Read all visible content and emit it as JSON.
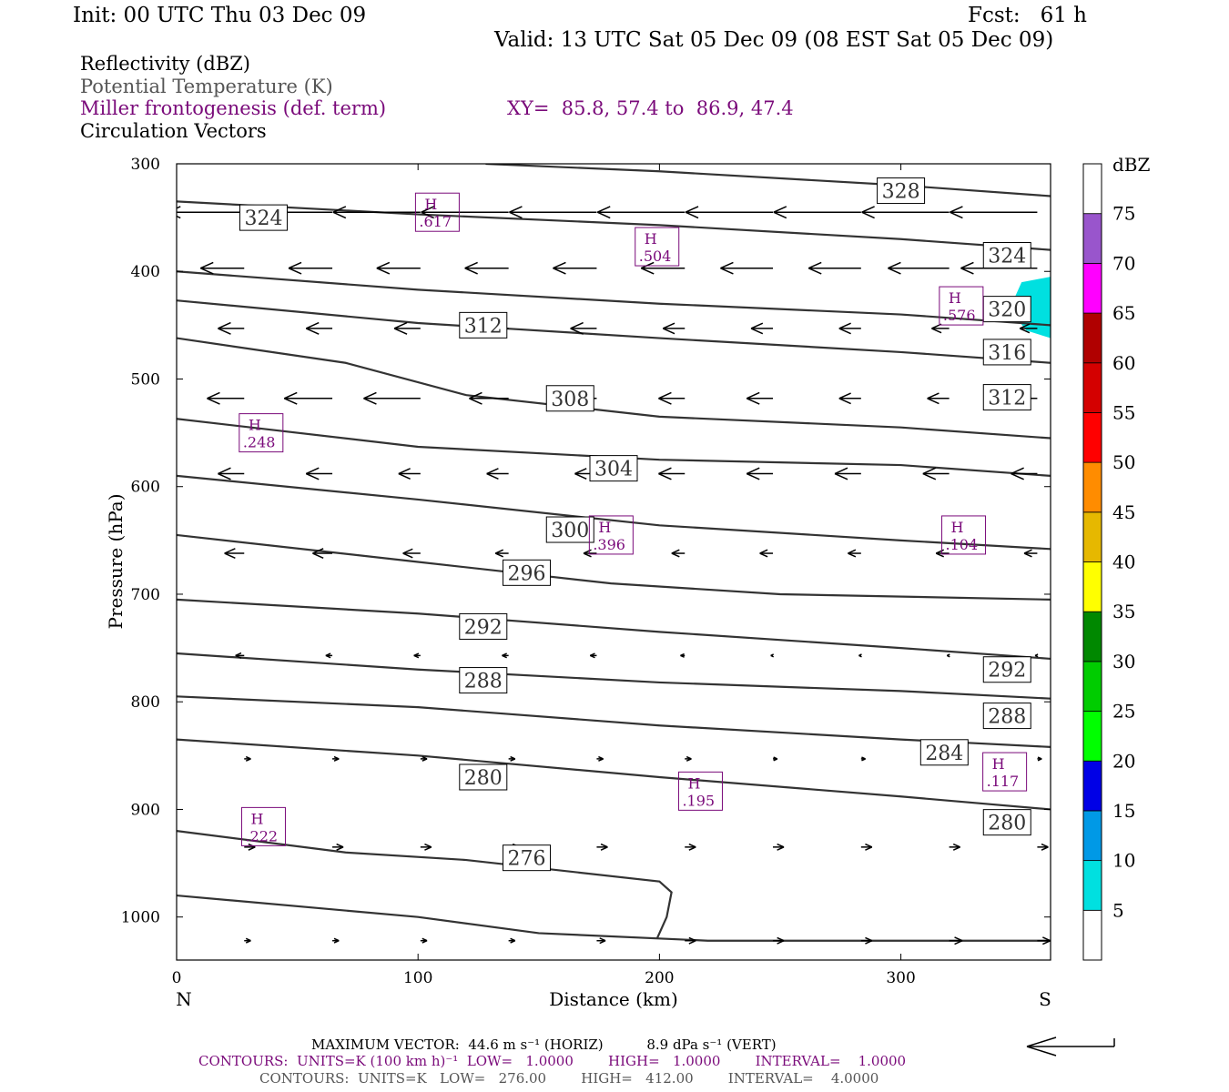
{
  "header": {
    "init": "Init: 00 UTC Thu 03 Dec 09",
    "fcst": "Fcst:   61 h",
    "valid": "Valid: 13 UTC Sat 05 Dec 09 (08 EST Sat 05 Dec 09)"
  },
  "legend": {
    "reflectivity": "Reflectivity (dBZ)",
    "theta": "Potential Temperature (K)",
    "miller": "Miller frontogenesis (def. term)",
    "xy": "XY=  85.8, 57.4 to  86.9, 47.4",
    "vectors": "Circulation Vectors"
  },
  "footer": {
    "max_vector": "MAXIMUM VECTOR:  44.6 m s⁻¹ (HORIZ)          8.9 dPa s⁻¹ (VERT)",
    "contours_front": "CONTOURS:  UNITS=K (100 km h)⁻¹  LOW=   1.0000        HIGH=   1.0000        INTERVAL=    1.0000",
    "contours_theta": "CONTOURS:  UNITS=K   LOW=   276.00        HIGH=   412.00        INTERVAL=    4.0000"
  },
  "colors": {
    "purple": "#7a0a7a",
    "theta_line": "#333333",
    "cyan": "#00e0e0"
  },
  "chart_data": {
    "type": "cross-section",
    "xlabel": "Distance (km)",
    "ylabel": "Pressure (hPa)",
    "xlim": [
      0,
      362
    ],
    "ylim": [
      300,
      1040
    ],
    "x_ticks": [
      0,
      100,
      200,
      300
    ],
    "y_ticks": [
      300,
      400,
      500,
      600,
      700,
      800,
      900,
      1000
    ],
    "x_end_labels": {
      "left": "N",
      "right": "S"
    },
    "colorbar": {
      "title": "dBZ",
      "levels": [
        5,
        10,
        15,
        20,
        25,
        30,
        35,
        40,
        45,
        50,
        55,
        60,
        65,
        70,
        75
      ],
      "colors": [
        "#ffffff",
        "#00e0e0",
        "#0099e6",
        "#0000e6",
        "#00ff00",
        "#00cc00",
        "#008800",
        "#ffff00",
        "#e6b800",
        "#ff8c00",
        "#ff0000",
        "#d40000",
        "#b00000",
        "#ff00ff",
        "#9955cc",
        "#ffffff"
      ]
    },
    "theta_contours": [
      {
        "value": 328,
        "points": [
          [
            128,
            300
          ],
          [
            200,
            307
          ],
          [
            300,
            320
          ],
          [
            362,
            330
          ]
        ],
        "labels": [
          [
            300,
            325
          ]
        ]
      },
      {
        "value": 324,
        "points": [
          [
            0,
            335
          ],
          [
            100,
            347
          ],
          [
            200,
            357
          ],
          [
            300,
            370
          ],
          [
            362,
            380
          ]
        ],
        "labels": [
          [
            36,
            350
          ],
          [
            344,
            385
          ]
        ]
      },
      {
        "value": 320,
        "points": [
          [
            0,
            400
          ],
          [
            100,
            417
          ],
          [
            200,
            430
          ],
          [
            300,
            440
          ],
          [
            362,
            450
          ]
        ],
        "labels": [
          [
            344,
            435
          ]
        ]
      },
      {
        "value": 316,
        "points": [
          [
            0,
            427
          ],
          [
            100,
            448
          ],
          [
            200,
            462
          ],
          [
            300,
            475
          ],
          [
            362,
            485
          ]
        ],
        "labels": [
          [
            344,
            475
          ]
        ]
      },
      {
        "value": 312,
        "points": [
          [
            0,
            462
          ],
          [
            70,
            485
          ],
          [
            120,
            515
          ],
          [
            200,
            535
          ],
          [
            300,
            545
          ],
          [
            362,
            555
          ]
        ],
        "labels": [
          [
            127,
            450
          ],
          [
            344,
            517
          ]
        ]
      },
      {
        "value": 308,
        "points": [
          [
            0,
            537
          ],
          [
            100,
            563
          ],
          [
            200,
            575
          ],
          [
            300,
            580
          ],
          [
            362,
            590
          ]
        ],
        "labels": [
          [
            163,
            518
          ]
        ]
      },
      {
        "value": 304,
        "points": [
          [
            0,
            590
          ],
          [
            100,
            612
          ],
          [
            200,
            636
          ],
          [
            300,
            650
          ],
          [
            362,
            658
          ]
        ],
        "labels": [
          [
            181,
            583
          ]
        ]
      },
      {
        "value": 300,
        "points": [
          [
            0,
            645
          ],
          [
            100,
            670
          ],
          [
            180,
            690
          ],
          [
            250,
            700
          ],
          [
            362,
            705
          ]
        ],
        "labels": [
          [
            163,
            640
          ]
        ]
      },
      {
        "value": 296,
        "points": [
          [
            0,
            705
          ],
          [
            100,
            718
          ],
          [
            200,
            735
          ],
          [
            300,
            750
          ],
          [
            362,
            760
          ]
        ],
        "labels": [
          [
            145,
            680
          ]
        ]
      },
      {
        "value": 292,
        "points": [
          [
            0,
            755
          ],
          [
            100,
            770
          ],
          [
            200,
            782
          ],
          [
            300,
            790
          ],
          [
            362,
            797
          ]
        ],
        "labels": [
          [
            127,
            730
          ],
          [
            344,
            770
          ]
        ]
      },
      {
        "value": 288,
        "points": [
          [
            0,
            795
          ],
          [
            100,
            805
          ],
          [
            200,
            822
          ],
          [
            300,
            835
          ],
          [
            362,
            842
          ]
        ],
        "labels": [
          [
            127,
            780
          ],
          [
            344,
            813
          ]
        ]
      },
      {
        "value": 284,
        "points": [
          [
            0,
            835
          ],
          [
            100,
            850
          ],
          [
            200,
            870
          ],
          [
            300,
            888
          ],
          [
            362,
            900
          ]
        ],
        "labels": [
          [
            318,
            847
          ]
        ]
      },
      {
        "value": 280,
        "points": [
          [
            0,
            920
          ],
          [
            70,
            940
          ],
          [
            120,
            947
          ],
          [
            200,
            967
          ],
          [
            205,
            977
          ],
          [
            203,
            1000
          ],
          [
            199,
            1020
          ]
        ],
        "labels": [
          [
            127,
            870
          ],
          [
            344,
            912
          ]
        ]
      },
      {
        "value": 276,
        "points": [
          [
            0,
            980
          ],
          [
            100,
            1000
          ],
          [
            150,
            1015
          ],
          [
            220,
            1022
          ],
          [
            362,
            1022
          ]
        ],
        "labels": [
          [
            145,
            945
          ]
        ]
      }
    ],
    "frontogenesis_maxima": [
      {
        "label": "H",
        "value": ".617",
        "x": 108,
        "p": 345
      },
      {
        "label": "H",
        "value": ".504",
        "x": 199,
        "p": 377
      },
      {
        "label": "H",
        "value": ".576",
        "x": 325,
        "p": 432
      },
      {
        "label": "H",
        "value": ".248",
        "x": 35,
        "p": 550
      },
      {
        "label": "H",
        "value": ".396",
        "x": 180,
        "p": 645
      },
      {
        "label": "H",
        "value": ".104",
        "x": 326,
        "p": 645
      },
      {
        "label": "H",
        "value": ".117",
        "x": 343,
        "p": 865
      },
      {
        "label": "H",
        "value": ".195",
        "x": 217,
        "p": 883
      },
      {
        "label": "H",
        "value": ".222",
        "x": 36,
        "p": 916
      }
    ],
    "reflectivity_patch": {
      "dbz": "5-10",
      "points": [
        [
          362,
          405
        ],
        [
          350,
          410
        ],
        [
          345,
          435
        ],
        [
          352,
          455
        ],
        [
          362,
          462
        ]
      ]
    },
    "vector_rows": [
      {
        "p": 345,
        "u": [
          -35,
          -40,
          -40,
          -40,
          -40,
          -40,
          -40,
          -40,
          -40,
          -40
        ],
        "w": [
          0,
          0,
          0,
          0,
          0,
          0,
          0,
          0,
          0,
          0
        ]
      },
      {
        "p": 397,
        "u": [
          -20,
          -20,
          -20,
          -20,
          -20,
          -20,
          -24,
          -24,
          -28,
          -35
        ],
        "w": [
          0,
          0,
          0,
          0,
          0,
          0,
          0,
          0,
          0,
          0
        ]
      },
      {
        "p": 453,
        "u": [
          -12,
          -12,
          -12,
          -12,
          -12,
          -10,
          -10,
          -10,
          -8,
          -8
        ],
        "w": [
          0,
          0,
          0,
          0,
          0,
          0,
          0,
          0,
          0,
          0
        ]
      },
      {
        "p": 518,
        "u": [
          -17,
          -22,
          -26,
          -18,
          -12,
          -12,
          -12,
          -10,
          -10,
          -8
        ],
        "w": [
          0,
          0,
          0,
          0,
          0,
          0,
          0,
          0,
          0,
          0
        ]
      },
      {
        "p": 588,
        "u": [
          -12,
          -12,
          -10,
          -10,
          -10,
          -12,
          -12,
          -12,
          -12,
          -12
        ],
        "w": [
          0,
          0,
          0,
          0,
          0,
          0,
          0,
          0,
          0,
          0
        ]
      },
      {
        "p": 662,
        "u": [
          -9,
          -9,
          -8,
          -6,
          -6,
          -6,
          -6,
          -6,
          -6,
          -6
        ],
        "w": [
          0,
          0,
          0,
          0,
          0,
          0,
          0,
          0,
          0,
          0
        ]
      },
      {
        "p": 757,
        "u": [
          -4,
          -3,
          -3,
          -3,
          -3,
          -2,
          -1,
          -1,
          -1,
          -1
        ],
        "w": [
          0,
          0,
          0,
          0,
          0,
          0,
          0,
          0,
          0,
          0
        ]
      },
      {
        "p": 853,
        "u": [
          3,
          3,
          3,
          3,
          3,
          3,
          2,
          2,
          2,
          2
        ],
        "w": [
          0,
          0,
          0,
          0,
          0,
          0,
          0,
          0,
          0,
          0
        ]
      },
      {
        "p": 935,
        "u": [
          5,
          5,
          5,
          5,
          5,
          5,
          5,
          5,
          5,
          5
        ],
        "w": [
          0,
          0,
          0,
          0,
          0,
          0,
          0,
          0,
          0,
          0
        ]
      },
      {
        "p": 1022,
        "u": [
          3,
          3,
          3,
          3,
          4,
          5,
          5,
          5,
          6,
          6
        ],
        "w": [
          0,
          0,
          0,
          0,
          0,
          0,
          0,
          0,
          0,
          0
        ]
      }
    ]
  }
}
